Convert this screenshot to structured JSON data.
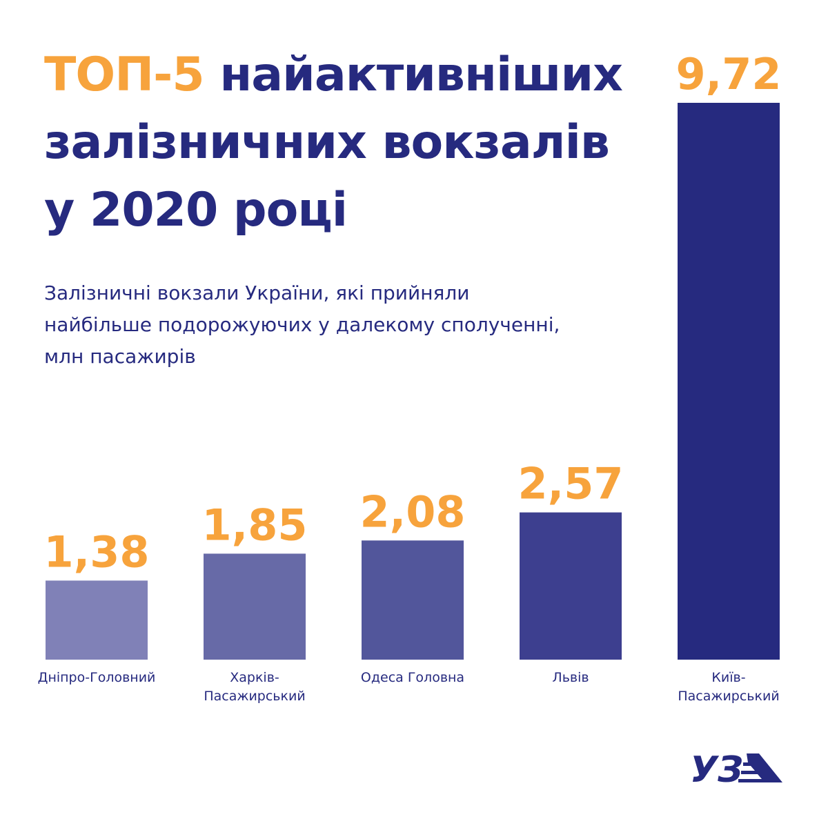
{
  "title": {
    "accent": "ТОП-5",
    "rest_line1": " найактивніших",
    "line2": "залізничних вокзалів",
    "line3": "у 2020 році"
  },
  "subtitle": {
    "line1": "Залізничні вокзали України, які прийняли",
    "line2": "найбільше подорожуючих у далекому сполученні,",
    "line3": "млн пасажирів"
  },
  "logo": {
    "icon": "uz-logo-icon",
    "text": "УЗ"
  },
  "colors": {
    "accent": "#f7a33c",
    "primary": "#262a7f",
    "bars": [
      "#8081b7",
      "#676aa7",
      "#52569b",
      "#3d3f8f",
      "#262a7f"
    ]
  },
  "chart_data": {
    "type": "bar",
    "categories": [
      [
        "Дніпро-Головний"
      ],
      [
        "Харків-",
        "Пасажирський"
      ],
      [
        "Одеса Головна"
      ],
      [
        "Львів"
      ],
      [
        "Київ-",
        "Пасажирський"
      ]
    ],
    "values": [
      1.38,
      1.85,
      2.08,
      2.57,
      9.72
    ],
    "value_labels": [
      "1,38",
      "1,85",
      "2,08",
      "2,57",
      "9,72"
    ],
    "grid": false,
    "legend": "none"
  }
}
